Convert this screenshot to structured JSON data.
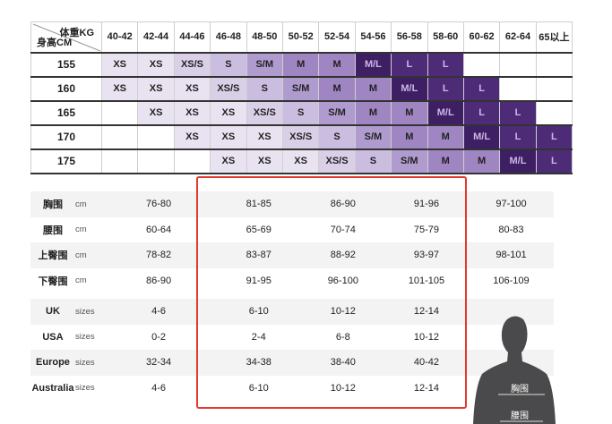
{
  "colors": {
    "XS": "#e9e3f1",
    "XS/S": "#d9cfe7",
    "S": "#cbbde0",
    "S/M": "#b09bce",
    "M": "#9f86c2",
    "M/L": "#3e1f63",
    "L": "#4d2b77",
    "accent_box": "#e03a32"
  },
  "size_grid": {
    "corner_weight": "体重KG",
    "corner_height": "身高CM",
    "weights": [
      "40-42",
      "42-44",
      "44-46",
      "46-48",
      "48-50",
      "50-52",
      "52-54",
      "54-56",
      "56-58",
      "58-60",
      "60-62",
      "62-64",
      "65以上"
    ],
    "rows": [
      {
        "height": "155",
        "sizes": [
          "XS",
          "XS",
          "XS/S",
          "S",
          "S/M",
          "M",
          "M",
          "M/L",
          "L",
          "L",
          "",
          "",
          ""
        ]
      },
      {
        "height": "160",
        "sizes": [
          "XS",
          "XS",
          "XS",
          "XS/S",
          "S",
          "S/M",
          "M",
          "M",
          "M/L",
          "L",
          "L",
          "",
          ""
        ]
      },
      {
        "height": "165",
        "sizes": [
          "",
          "XS",
          "XS",
          "XS",
          "XS/S",
          "S",
          "S/M",
          "M",
          "M",
          "M/L",
          "L",
          "L",
          ""
        ]
      },
      {
        "height": "170",
        "sizes": [
          "",
          "",
          "XS",
          "XS",
          "XS",
          "XS/S",
          "S",
          "S/M",
          "M",
          "M",
          "M/L",
          "L",
          "L"
        ]
      },
      {
        "height": "175",
        "sizes": [
          "",
          "",
          "",
          "XS",
          "XS",
          "XS",
          "XS/S",
          "S",
          "S/M",
          "M",
          "M",
          "M/L",
          "L"
        ]
      }
    ]
  },
  "measurements": [
    {
      "label": "胸围",
      "unit": "cm",
      "values": [
        "76-80",
        "81-85",
        "86-90",
        "91-96",
        "97-100"
      ]
    },
    {
      "label": "腰围",
      "unit": "cm",
      "values": [
        "60-64",
        "65-69",
        "70-74",
        "75-79",
        "80-83"
      ]
    },
    {
      "label": "上臀围",
      "unit": "cm",
      "values": [
        "78-82",
        "83-87",
        "88-92",
        "93-97",
        "98-101"
      ]
    },
    {
      "label": "下臀围",
      "unit": "cm",
      "values": [
        "86-90",
        "91-95",
        "96-100",
        "101-105",
        "106-109"
      ]
    }
  ],
  "conversions": [
    {
      "label": "UK",
      "unit": "sizes",
      "values": [
        "4-6",
        "6-10",
        "10-12",
        "12-14",
        ""
      ]
    },
    {
      "label": "USA",
      "unit": "sizes",
      "values": [
        "0-2",
        "2-4",
        "6-8",
        "10-12",
        ""
      ]
    },
    {
      "label": "Europe",
      "unit": "sizes",
      "values": [
        "32-34",
        "34-38",
        "38-40",
        "40-42",
        ""
      ]
    },
    {
      "label": "Australia",
      "unit": "sizes",
      "values": [
        "4-6",
        "6-10",
        "10-12",
        "12-14",
        ""
      ]
    }
  ],
  "figure": {
    "chest_label": "胸围",
    "waist_label": "腰围"
  }
}
